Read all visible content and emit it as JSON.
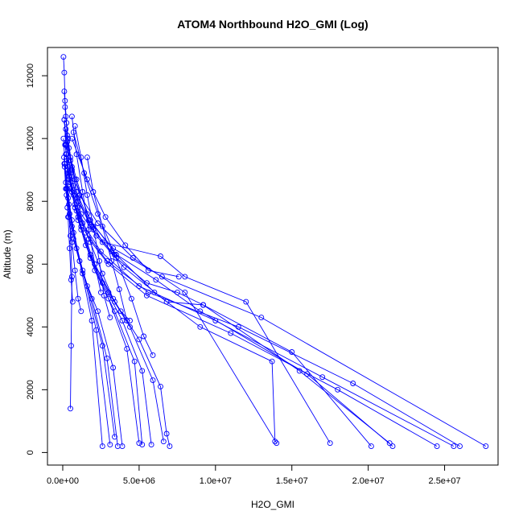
{
  "chart_data": {
    "type": "line",
    "title": "ATOM4 Northbound H2O_GMI (Log)",
    "xlabel": "H2O_GMI",
    "ylabel": "Altitude (m)",
    "xlim": [
      -1000000,
      28500000
    ],
    "ylim": [
      -400,
      12900
    ],
    "x_ticks": [
      0,
      5000000,
      10000000,
      15000000,
      20000000,
      25000000
    ],
    "x_tick_labels": [
      "0.0e+00",
      "5.0e+06",
      "1.0e+07",
      "1.5e+07",
      "2.0e+07",
      "2.5e+07"
    ],
    "y_ticks": [
      0,
      2000,
      4000,
      6000,
      8000,
      10000,
      12000
    ],
    "y_tick_labels": [
      "0",
      "2000",
      "4000",
      "6000",
      "8000",
      "10000",
      "12000"
    ],
    "grid": false,
    "legend": "none",
    "series_color": "#0000ff",
    "marker": "open-circle",
    "series": [
      {
        "x": [
          50000,
          100000,
          150000,
          250000,
          400000,
          800000,
          1800000,
          3500000,
          6000000,
          9000000,
          13700000,
          13900000
        ],
        "y": [
          12600,
          12100,
          11200,
          10500,
          9700,
          8700,
          7400,
          6300,
          5100,
          4000,
          2900,
          350
        ]
      },
      {
        "x": [
          100000,
          200000,
          350000,
          600000,
          1100000,
          2300000,
          4600000,
          8000000,
          14000000
        ],
        "y": [
          11500,
          10700,
          10000,
          9100,
          8200,
          7300,
          6200,
          5100,
          300
        ]
      },
      {
        "x": [
          150000,
          300000,
          500000,
          900000,
          1600000,
          2600000,
          6400000,
          8000000,
          12000000,
          17500000
        ],
        "y": [
          11000,
          10100,
          9400,
          8700,
          7600,
          6700,
          6250,
          5600,
          4800,
          300
        ]
      },
      {
        "x": [
          100000,
          250000,
          500000,
          1000000,
          2000000,
          3500000,
          5500000,
          7500000,
          9200000,
          15000000,
          20200000
        ],
        "y": [
          10600,
          9800,
          8900,
          8000,
          7100,
          6200,
          5400,
          5100,
          4700,
          3200,
          200
        ]
      },
      {
        "x": [
          200000,
          400000,
          700000,
          1200000,
          2200000,
          4000000,
          6800000,
          9200000,
          15500000,
          21400000
        ],
        "y": [
          10300,
          9300,
          8500,
          7600,
          6900,
          5900,
          4800,
          4700,
          2600,
          300
        ]
      },
      {
        "x": [
          300000,
          600000,
          1000000,
          1800000,
          3200000,
          6100000,
          9000000,
          16000000,
          21600000
        ],
        "y": [
          9900,
          9000,
          8100,
          7200,
          6400,
          5500,
          4500,
          2500,
          200
        ]
      },
      {
        "x": [
          250000,
          500000,
          900000,
          1700000,
          3000000,
          5500000,
          11000000,
          18000000,
          24500000
        ],
        "y": [
          9500,
          8600,
          7700,
          6800,
          6000,
          5000,
          3800,
          2000,
          200
        ]
      },
      {
        "x": [
          350000,
          700000,
          1300000,
          2500000,
          5000000,
          10000000,
          17000000,
          25600000
        ],
        "y": [
          9100,
          8200,
          7300,
          6400,
          5300,
          4200,
          2400,
          200
        ]
      },
      {
        "x": [
          400000,
          800000,
          1500000,
          2900000,
          5600000,
          11500000,
          19000000,
          26000000
        ],
        "y": [
          8800,
          7900,
          7000,
          6100,
          5100,
          4000,
          2200,
          200
        ]
      },
      {
        "x": [
          500000,
          900000,
          1700000,
          3300000,
          6500000,
          13000000,
          27700000
        ],
        "y": [
          9300,
          8300,
          7400,
          6500,
          5600,
          4300,
          200
        ]
      },
      {
        "x": [
          80000,
          300000,
          600000,
          1100000,
          1900000,
          2600000
        ],
        "y": [
          9400,
          8400,
          7400,
          6100,
          4200,
          200
        ]
      },
      {
        "x": [
          120000,
          350000,
          700000,
          1300000,
          2200000,
          3100000
        ],
        "y": [
          9100,
          8100,
          7000,
          5800,
          3900,
          250
        ]
      },
      {
        "x": [
          200000,
          450000,
          900000,
          1600000,
          2600000,
          3400000
        ],
        "y": [
          8600,
          7600,
          6500,
          5300,
          3400,
          500
        ]
      },
      {
        "x": [
          250000,
          600000,
          1100000,
          1900000,
          2900000,
          3600000
        ],
        "y": [
          8200,
          7200,
          6100,
          4900,
          3000,
          200
        ]
      },
      {
        "x": [
          300000,
          700000,
          1300000,
          2300000,
          3300000,
          3900000
        ],
        "y": [
          7800,
          6800,
          5700,
          4500,
          2700,
          200
        ]
      },
      {
        "x": [
          150000,
          500000,
          1000000,
          1800000,
          3000000,
          4200000,
          5000000
        ],
        "y": [
          9800,
          8600,
          7400,
          6200,
          4900,
          3300,
          300
        ]
      },
      {
        "x": [
          200000,
          600000,
          1200000,
          2100000,
          3400000,
          4700000,
          5200000
        ],
        "y": [
          9500,
          8300,
          7100,
          5800,
          4500,
          2900,
          250
        ]
      },
      {
        "x": [
          300000,
          800000,
          1500000,
          2600000,
          3900000,
          5200000,
          5800000
        ],
        "y": [
          9000,
          7800,
          6600,
          5400,
          4200,
          2600,
          250
        ]
      },
      {
        "x": [
          400000,
          1000000,
          1800000,
          3000000,
          4400000,
          5900000,
          6600000
        ],
        "y": [
          8700,
          7500,
          6300,
          5100,
          4000,
          2300,
          350
        ]
      },
      {
        "x": [
          500000,
          1200000,
          2100000,
          3400000,
          5000000,
          6400000,
          6800000,
          7000000
        ],
        "y": [
          8400,
          7200,
          6000,
          4800,
          3600,
          2100,
          600,
          200
        ]
      },
      {
        "x": [
          100000,
          200000,
          300000,
          400000,
          500000,
          600000,
          550000,
          500000
        ],
        "y": [
          10600,
          9800,
          8900,
          7900,
          6900,
          5600,
          3400,
          1400
        ]
      },
      {
        "x": [
          50000,
          150000,
          250000,
          350000,
          450000,
          550000,
          650000
        ],
        "y": [
          10000,
          9200,
          8400,
          7500,
          6500,
          5500,
          4800
        ]
      },
      {
        "x": [
          100000,
          200000,
          400000,
          600000,
          800000,
          1000000,
          1200000
        ],
        "y": [
          9200,
          8400,
          7500,
          6700,
          5800,
          4900,
          4500
        ]
      },
      {
        "x": [
          600000,
          900000,
          1300000,
          1700000,
          2100000,
          2500000
        ],
        "y": [
          10700,
          9500,
          8300,
          7100,
          6000,
          5100
        ]
      },
      {
        "x": [
          800000,
          1200000,
          1600000,
          2000000,
          2400000,
          2700000,
          3100000
        ],
        "y": [
          10400,
          9400,
          8200,
          7200,
          6100,
          5000,
          4300
        ]
      },
      {
        "x": [
          1600000,
          2000000,
          2600000,
          3200000,
          3700000,
          4200000
        ],
        "y": [
          9400,
          8300,
          7200,
          6100,
          5200,
          4200
        ]
      },
      {
        "x": [
          700000,
          1400000,
          2300000,
          3400000,
          4500000,
          5300000,
          5900000
        ],
        "y": [
          10200,
          8900,
          7600,
          6300,
          4900,
          3700,
          3100
        ]
      },
      {
        "x": [
          600000,
          1600000,
          2800000,
          4100000,
          5600000,
          7600000
        ],
        "y": [
          10000,
          8700,
          7500,
          6600,
          5800,
          5600
        ]
      },
      {
        "x": [
          400000,
          1000000,
          1800000,
          2600000,
          3300000,
          3800000,
          4400000
        ],
        "y": [
          8900,
          7800,
          6700,
          5700,
          4900,
          4500,
          4200
        ]
      }
    ]
  }
}
